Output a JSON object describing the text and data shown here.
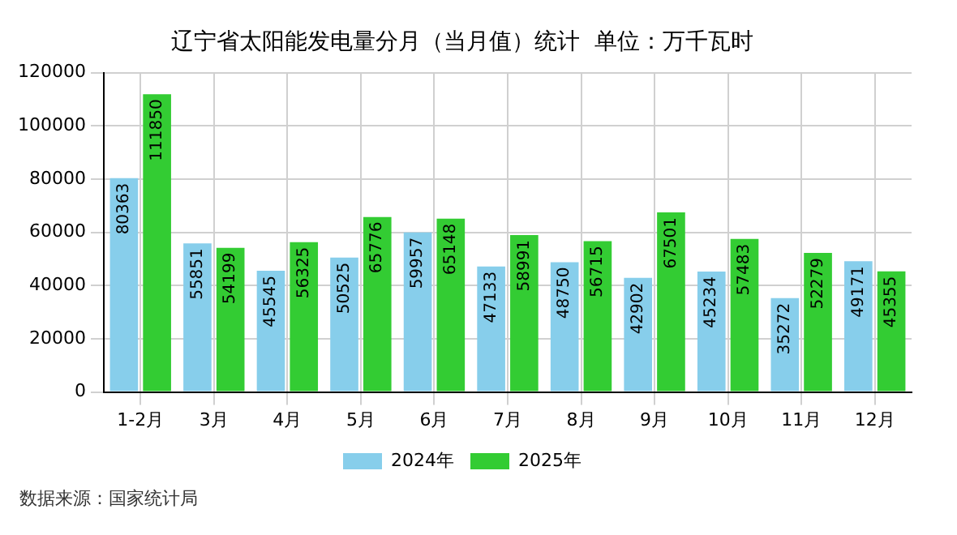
{
  "chart_data": {
    "type": "bar",
    "title": "辽宁省太阳能发电量分月（当月值）统计  单位：万千瓦时",
    "categories": [
      "1-2月",
      "3月",
      "4月",
      "5月",
      "6月",
      "7月",
      "8月",
      "9月",
      "10月",
      "11月",
      "12月"
    ],
    "series": [
      {
        "name": "2024年",
        "color": "#87ceeb",
        "values": [
          80363,
          55851,
          45545,
          50525,
          59957,
          47133,
          48750,
          42902,
          45234,
          35272,
          49171
        ]
      },
      {
        "name": "2025年",
        "color": "#33cc33",
        "values": [
          111850,
          54199,
          56325,
          65776,
          65148,
          58991,
          56715,
          67501,
          57483,
          52279,
          45355
        ]
      }
    ],
    "ylim": [
      0,
      120000
    ],
    "yticks": [
      0,
      20000,
      40000,
      60000,
      80000,
      100000,
      120000
    ],
    "grid": true,
    "legend": "bottom",
    "data_labels": true,
    "annotations": [
      "数据来源：国家统计局"
    ]
  }
}
